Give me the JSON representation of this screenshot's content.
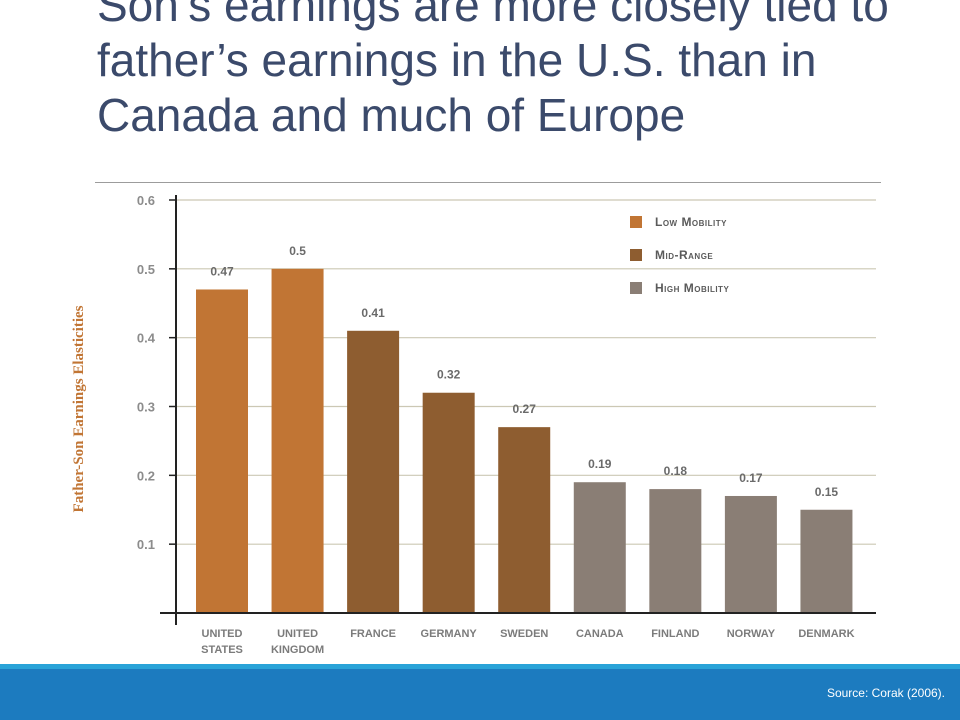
{
  "slide": {
    "title": "Son’s earnings are more closely tied to father’s earnings in the U.S. than in Canada and much of Europe",
    "source": "Source: Corak (2006)."
  },
  "chart_data": {
    "type": "bar",
    "ylabel": "Father-Son Earnings Elasticities",
    "ylim": [
      0,
      0.6
    ],
    "yticks": [
      "0.1",
      "0.2",
      "0.3",
      "0.4",
      "0.5",
      "0.6"
    ],
    "grid": true,
    "legend_position": "top-right",
    "legend": [
      {
        "label": "Low Mobility",
        "color": "#c17534"
      },
      {
        "label": "Mid-Range",
        "color": "#8e5d30"
      },
      {
        "label": "High Mobility",
        "color": "#8a7e75"
      }
    ],
    "categories": [
      [
        "UNITED",
        "STATES"
      ],
      [
        "UNITED",
        "KINGDOM"
      ],
      [
        "FRANCE"
      ],
      [
        "GERMANY"
      ],
      [
        "SWEDEN"
      ],
      [
        "CANADA"
      ],
      [
        "FINLAND"
      ],
      [
        "NORWAY"
      ],
      [
        "DENMARK"
      ]
    ],
    "values": [
      0.47,
      0.5,
      0.41,
      0.32,
      0.27,
      0.19,
      0.18,
      0.17,
      0.15
    ],
    "data_labels": [
      "0.47",
      "0.5",
      "0.41",
      "0.32",
      "0.27",
      "0.19",
      "0.18",
      "0.17",
      "0.15"
    ],
    "group": [
      0,
      0,
      1,
      1,
      1,
      2,
      2,
      2,
      2
    ]
  }
}
